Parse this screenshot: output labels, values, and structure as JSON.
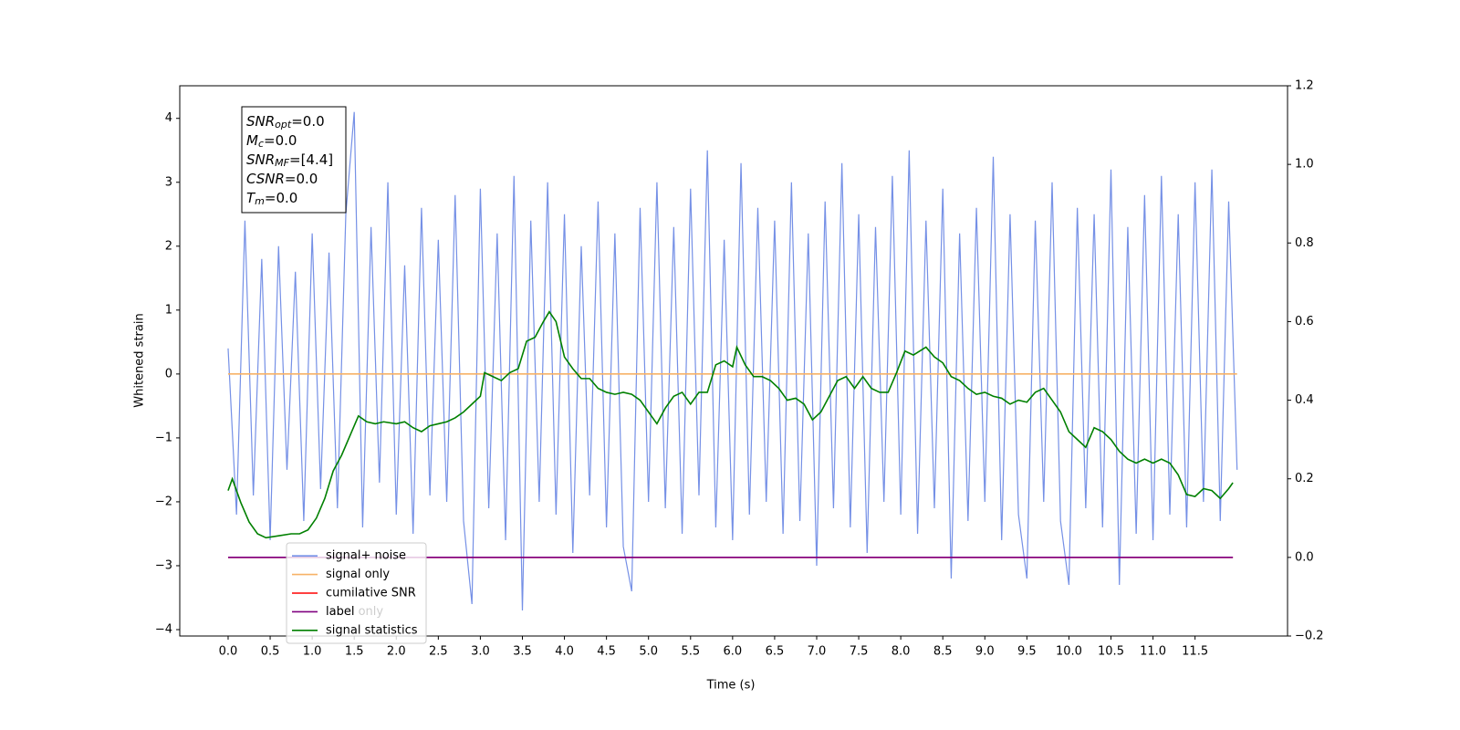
{
  "chart_data": {
    "type": "line",
    "xlabel": "Time (s)",
    "ylabel": "Whitened strain",
    "xlim": [
      -0.575,
      12.6
    ],
    "ylim": [
      -4.1,
      4.51
    ],
    "y2lim": [
      -0.2,
      1.2
    ],
    "xticks": [
      {
        "value": 0,
        "label": "0.0"
      },
      0.5,
      {
        "value": 1,
        "label": "1.0"
      },
      1.5,
      {
        "value": 2,
        "label": "2.0"
      },
      2.5,
      {
        "value": 3,
        "label": "3.0"
      },
      3.5,
      {
        "value": 4,
        "label": "4.0"
      },
      4.5,
      {
        "value": 5,
        "label": "5.0"
      },
      5.5,
      {
        "value": 6,
        "label": "6.0"
      },
      6.5,
      {
        "value": 7,
        "label": "7.0"
      },
      7.5,
      {
        "value": 8,
        "label": "8.0"
      },
      8.5,
      {
        "value": 9,
        "label": "9.0"
      },
      9.5,
      {
        "value": 10,
        "label": "10.0"
      },
      10.5,
      {
        "value": 11,
        "label": "11.0"
      },
      11.5
    ],
    "yticks": [
      {
        "value": -4,
        "label": "−4"
      },
      {
        "value": -3,
        "label": "−3"
      },
      {
        "value": -2,
        "label": "−2"
      },
      {
        "value": -1,
        "label": "−1"
      },
      0,
      1,
      2,
      3,
      4
    ],
    "y2ticks": [
      {
        "value": -0.2,
        "label": "−0.2"
      },
      {
        "value": 0,
        "label": "0.0"
      },
      0.2,
      0.4,
      0.6,
      0.8,
      {
        "value": 1,
        "label": "1.0"
      },
      1.2
    ],
    "grid": false,
    "legend": "lower left",
    "legend_overlap_text": "label only",
    "textbox": [
      {
        "symbol": "SNR",
        "sub": "opt",
        "text": "=0.0"
      },
      {
        "symbol": "M",
        "sub": "c",
        "text": "=0.0"
      },
      {
        "symbol": "SNR",
        "sub": "MF",
        "text": "=[4.4]"
      },
      {
        "symbol": "CSNR",
        "sub": "",
        "text": "=0.0"
      },
      {
        "symbol": "T",
        "sub": "m",
        "text": "=0.0"
      }
    ],
    "series": [
      {
        "name": "signal+ noise",
        "color": "#7590e6",
        "axis": "y",
        "x": [
          0,
          0.1,
          0.2,
          0.3,
          0.4,
          0.5,
          0.6,
          0.7,
          0.8,
          0.9,
          1,
          1.1,
          1.2,
          1.3,
          1.4,
          1.5,
          1.6,
          1.7,
          1.8,
          1.9,
          2,
          2.1,
          2.2,
          2.3,
          2.4,
          2.5,
          2.6,
          2.7,
          2.8,
          2.9,
          3,
          3.1,
          3.2,
          3.3,
          3.4,
          3.5,
          3.6,
          3.7,
          3.8,
          3.9,
          4,
          4.1,
          4.2,
          4.3,
          4.4,
          4.5,
          4.6,
          4.7,
          4.8,
          4.9,
          5,
          5.1,
          5.2,
          5.3,
          5.4,
          5.5,
          5.6,
          5.7,
          5.8,
          5.9,
          6,
          6.1,
          6.2,
          6.3,
          6.4,
          6.5,
          6.6,
          6.7,
          6.8,
          6.9,
          7,
          7.1,
          7.2,
          7.3,
          7.4,
          7.5,
          7.6,
          7.7,
          7.8,
          7.9,
          8,
          8.1,
          8.2,
          8.3,
          8.4,
          8.5,
          8.6,
          8.7,
          8.8,
          8.9,
          9,
          9.1,
          9.2,
          9.3,
          9.4,
          9.5,
          9.6,
          9.7,
          9.8,
          9.9,
          10,
          10.1,
          10.2,
          10.3,
          10.4,
          10.5,
          10.6,
          10.7,
          10.8,
          10.9,
          11,
          11.1,
          11.2,
          11.3,
          11.4,
          11.5,
          11.6,
          11.7,
          11.8,
          11.9,
          12
        ],
        "values": [
          0.4,
          -2.2,
          2.4,
          -1.9,
          1.8,
          -2.6,
          2.0,
          -1.5,
          1.6,
          -2.3,
          2.2,
          -1.8,
          1.9,
          -2.1,
          2.5,
          4.1,
          -2.4,
          2.3,
          -1.7,
          3.0,
          -2.2,
          1.7,
          -2.5,
          2.6,
          -1.9,
          2.1,
          -2.0,
          2.8,
          -2.3,
          -3.6,
          2.9,
          -2.1,
          2.2,
          -2.6,
          3.1,
          -3.7,
          2.4,
          -2.0,
          3.0,
          -2.2,
          2.5,
          -2.8,
          2.0,
          -1.9,
          2.7,
          -2.4,
          2.2,
          -2.7,
          -3.4,
          2.6,
          -2.0,
          3.0,
          -2.1,
          2.3,
          -2.5,
          2.9,
          -1.9,
          3.5,
          -2.4,
          2.1,
          -2.6,
          3.3,
          -2.2,
          2.6,
          -2.0,
          2.4,
          -2.5,
          3.0,
          -2.3,
          2.2,
          -3.0,
          2.7,
          -2.1,
          3.3,
          -2.4,
          2.5,
          -2.8,
          2.3,
          -2.0,
          3.1,
          -2.2,
          3.5,
          -2.5,
          2.4,
          -2.1,
          2.9,
          -3.2,
          2.2,
          -2.3,
          2.6,
          -2.0,
          3.4,
          -2.6,
          2.5,
          -2.2,
          -3.2,
          2.4,
          -2.0,
          3.0,
          -2.3,
          -3.3,
          2.6,
          -2.1,
          2.5,
          -2.4,
          3.2,
          -3.3,
          2.3,
          -2.5,
          2.8,
          -2.6,
          3.1,
          -2.2,
          2.5,
          -2.4,
          3.0,
          -2.0,
          3.2,
          -2.3,
          2.7,
          -1.5
        ]
      },
      {
        "name": "signal only",
        "color": "#f7b267",
        "axis": "y",
        "x": [
          0,
          12
        ],
        "values": [
          0,
          0
        ]
      },
      {
        "name": "cumilative SNR",
        "color": "red",
        "axis": "y2",
        "x": [
          0,
          11.95
        ],
        "values": [
          0,
          0
        ]
      },
      {
        "name": "label",
        "color": "purple",
        "axis": "y2",
        "x": [
          0,
          11.95
        ],
        "values": [
          0,
          0
        ]
      },
      {
        "name": "signal statistics",
        "color": "green",
        "axis": "y2",
        "x": [
          0,
          0.05,
          0.15,
          0.25,
          0.35,
          0.45,
          0.6,
          0.75,
          0.85,
          0.95,
          1.05,
          1.15,
          1.25,
          1.35,
          1.45,
          1.55,
          1.65,
          1.75,
          1.85,
          2,
          2.1,
          2.2,
          2.3,
          2.4,
          2.5,
          2.6,
          2.7,
          2.8,
          2.9,
          3,
          3.05,
          3.15,
          3.25,
          3.35,
          3.45,
          3.55,
          3.65,
          3.75,
          3.82,
          3.9,
          4,
          4.1,
          4.2,
          4.3,
          4.4,
          4.5,
          4.6,
          4.7,
          4.8,
          4.9,
          5,
          5.1,
          5.2,
          5.3,
          5.4,
          5.5,
          5.6,
          5.7,
          5.8,
          5.9,
          6,
          6.05,
          6.15,
          6.25,
          6.35,
          6.45,
          6.55,
          6.65,
          6.75,
          6.85,
          6.95,
          7.05,
          7.15,
          7.25,
          7.35,
          7.45,
          7.55,
          7.65,
          7.75,
          7.85,
          7.95,
          8.05,
          8.15,
          8.3,
          8.4,
          8.5,
          8.6,
          8.7,
          8.8,
          8.9,
          9,
          9.1,
          9.2,
          9.3,
          9.4,
          9.5,
          9.6,
          9.7,
          9.8,
          9.9,
          10,
          10.1,
          10.2,
          10.3,
          10.4,
          10.5,
          10.6,
          10.7,
          10.8,
          10.9,
          11,
          11.1,
          11.2,
          11.3,
          11.4,
          11.5,
          11.6,
          11.7,
          11.8,
          11.9,
          11.95
        ],
        "values": [
          0.17,
          0.2,
          0.14,
          0.09,
          0.06,
          0.05,
          0.055,
          0.06,
          0.06,
          0.07,
          0.1,
          0.15,
          0.22,
          0.26,
          0.31,
          0.36,
          0.345,
          0.34,
          0.345,
          0.34,
          0.345,
          0.33,
          0.32,
          0.335,
          0.34,
          0.345,
          0.355,
          0.37,
          0.39,
          0.41,
          0.47,
          0.46,
          0.45,
          0.47,
          0.48,
          0.55,
          0.56,
          0.6,
          0.625,
          0.6,
          0.51,
          0.48,
          0.455,
          0.455,
          0.43,
          0.42,
          0.415,
          0.42,
          0.415,
          0.4,
          0.37,
          0.34,
          0.38,
          0.41,
          0.42,
          0.39,
          0.42,
          0.42,
          0.49,
          0.5,
          0.485,
          0.535,
          0.49,
          0.46,
          0.46,
          0.45,
          0.43,
          0.4,
          0.405,
          0.39,
          0.35,
          0.37,
          0.41,
          0.45,
          0.46,
          0.43,
          0.46,
          0.43,
          0.42,
          0.42,
          0.47,
          0.525,
          0.515,
          0.535,
          0.51,
          0.495,
          0.46,
          0.45,
          0.43,
          0.415,
          0.42,
          0.41,
          0.405,
          0.39,
          0.4,
          0.395,
          0.42,
          0.43,
          0.4,
          0.37,
          0.32,
          0.3,
          0.28,
          0.33,
          0.32,
          0.3,
          0.27,
          0.25,
          0.24,
          0.25,
          0.24,
          0.25,
          0.24,
          0.21,
          0.16,
          0.155,
          0.175,
          0.17,
          0.15,
          0.175,
          0.19
        ]
      }
    ]
  }
}
